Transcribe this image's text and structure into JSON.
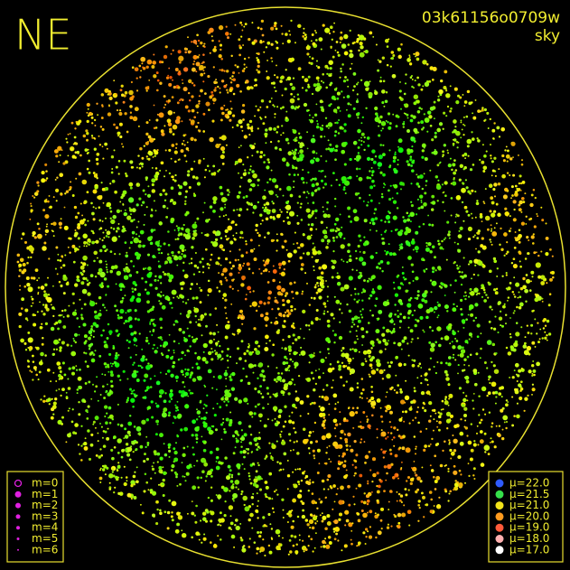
{
  "title": "NE",
  "frame_id": "03k61156o0709w",
  "mode": "sky",
  "magnitude_legend": [
    "m=0",
    "m=1",
    "m=2",
    "m=3",
    "m=4",
    "m=5",
    "m=6"
  ],
  "brightness_legend": [
    {
      "label": "μ=22.0",
      "color": "#2f5bff"
    },
    {
      "label": "μ=21.5",
      "color": "#35e04a"
    },
    {
      "label": "μ=21.0",
      "color": "#f2e21a"
    },
    {
      "label": "μ=20.0",
      "color": "#ff9a1e"
    },
    {
      "label": "μ=19.0",
      "color": "#ff5a3a"
    },
    {
      "label": "μ=18.0",
      "color": "#ffb0b0"
    },
    {
      "label": "μ=17.0",
      "color": "#ffffff"
    }
  ]
}
